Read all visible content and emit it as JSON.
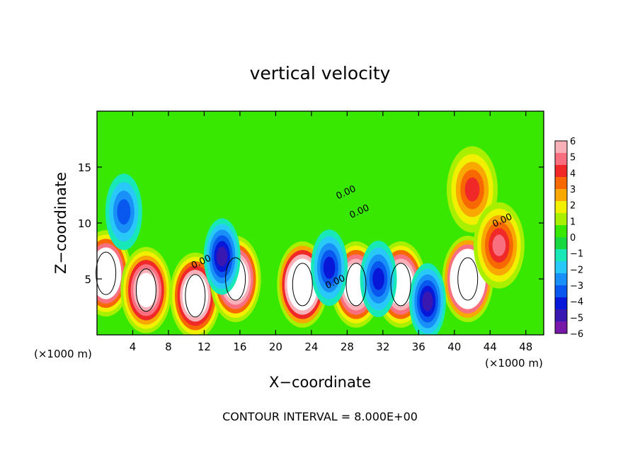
{
  "chart_data": {
    "type": "heatmap",
    "title": "vertical velocity",
    "xlabel": "X−coordinate",
    "ylabel": "Z−coordinate",
    "x_unit_label": "(×1000 m)",
    "x_unit_label_2": "(×1000 m)",
    "xlim": [
      0,
      50
    ],
    "ylim": [
      0,
      20
    ],
    "x_ticks": [
      4,
      8,
      12,
      16,
      20,
      24,
      28,
      32,
      36,
      40,
      44,
      48
    ],
    "x_tick_labels": [
      "4",
      "8",
      "12",
      "16",
      "20",
      "24",
      "28",
      "32",
      "36",
      "40",
      "44",
      "48"
    ],
    "y_ticks": [
      5,
      10,
      15
    ],
    "y_tick_labels": [
      "5",
      "10",
      "15"
    ],
    "footer": "CONTOUR INTERVAL = 8.000E+00",
    "contour_labels": [
      "0.00",
      "0.00",
      "0.00",
      "0.00",
      "0.00"
    ],
    "colorbar": {
      "min": -6,
      "max": 6,
      "tick_labels": [
        "6",
        "5",
        "4",
        "3",
        "2",
        "1",
        "0",
        "−1",
        "−2",
        "−3",
        "−4",
        "−5",
        "−6"
      ],
      "colors": [
        "#f8b0b8",
        "#f87080",
        "#f02828",
        "#f86800",
        "#f8a800",
        "#f0f000",
        "#a8f000",
        "#38e800",
        "#18d840",
        "#18e8b8",
        "#28c8f8",
        "#1890f8",
        "#0858f0",
        "#0818d8",
        "#3818b0",
        "#7818a8"
      ]
    },
    "features": [
      {
        "x": 1.0,
        "z": 5.5,
        "kind": "max",
        "w_peak": 12
      },
      {
        "x": 5.5,
        "z": 4.0,
        "kind": "max",
        "w_peak": 9
      },
      {
        "x": 11.0,
        "z": 3.5,
        "kind": "max",
        "w_peak": 10
      },
      {
        "x": 15.5,
        "z": 5.0,
        "kind": "max",
        "w_peak": 11
      },
      {
        "x": 23.0,
        "z": 4.5,
        "kind": "max",
        "w_peak": 14
      },
      {
        "x": 29.0,
        "z": 4.5,
        "kind": "max",
        "w_peak": 11
      },
      {
        "x": 34.0,
        "z": 4.5,
        "kind": "max",
        "w_peak": 11
      },
      {
        "x": 41.5,
        "z": 5.0,
        "kind": "max",
        "w_peak": 16
      },
      {
        "x": 3.0,
        "z": 11.0,
        "kind": "min",
        "w_peak": -3
      },
      {
        "x": 14.0,
        "z": 7.0,
        "kind": "min",
        "w_peak": -5
      },
      {
        "x": 26.0,
        "z": 6.0,
        "kind": "min",
        "w_peak": -4
      },
      {
        "x": 31.5,
        "z": 5.0,
        "kind": "min",
        "w_peak": -4
      },
      {
        "x": 37.0,
        "z": 3.0,
        "kind": "min",
        "w_peak": -5
      },
      {
        "x": 42.0,
        "z": 13.0,
        "kind": "max",
        "w_peak": 4
      },
      {
        "x": 45.0,
        "z": 8.0,
        "kind": "max",
        "w_peak": 5
      }
    ]
  }
}
